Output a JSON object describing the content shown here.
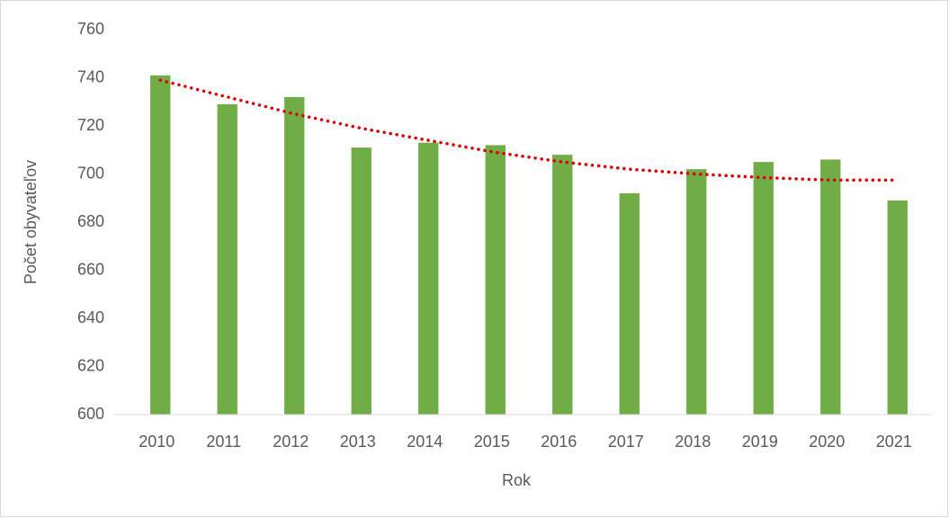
{
  "chart_data": {
    "type": "bar",
    "x_label": "Rok",
    "y_label": "Počet obyvateľov",
    "categories": [
      "2010",
      "2011",
      "2012",
      "2013",
      "2014",
      "2015",
      "2016",
      "2017",
      "2018",
      "2019",
      "2020",
      "2021"
    ],
    "values": [
      741,
      729,
      732,
      711,
      713,
      712,
      708,
      692,
      702,
      705,
      706,
      689
    ],
    "color": "#70ad47",
    "trendline": {
      "color": "#e00000",
      "style": "dotted",
      "values": [
        739,
        732,
        725,
        719,
        714,
        709,
        705,
        702,
        700,
        698.5,
        697.5,
        697.5
      ]
    },
    "ylim": [
      600,
      760
    ],
    "yticks": [
      600,
      620,
      640,
      660,
      680,
      700,
      720,
      740,
      760
    ],
    "grid": false
  }
}
